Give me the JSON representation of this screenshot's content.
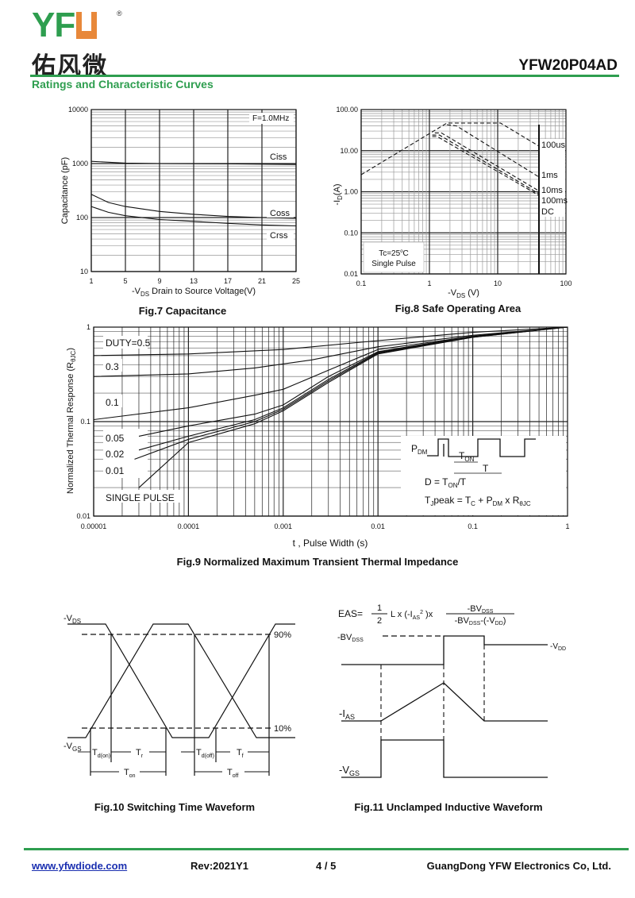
{
  "header": {
    "logo_text": "YFW",
    "logo_cn": "佑风微",
    "registered": "®",
    "part_number": "YFW20P04AD",
    "section_title": "Ratings and Characteristic Curves"
  },
  "footer": {
    "website": "www.yfwdiode.com",
    "revision": "Rev:2021Y1",
    "page": "4 / 5",
    "company": "GuangDong YFW Electronics Co, Ltd."
  },
  "colors": {
    "brand_green": "#2e9e4f",
    "brand_orange": "#e8883a",
    "link": "#1a2fb0"
  },
  "chart_data": [
    {
      "id": "fig7",
      "type": "line",
      "title": "Fig.7 Capacitance",
      "xlabel": {
        "pre": "-V",
        "sub": "DS",
        "post": " Drain to Source Voltage(V)"
      },
      "ylabel": "Capacitance (pF)",
      "xscale": "linear",
      "yscale": "log",
      "xlim": [
        1,
        25
      ],
      "ylim": [
        10,
        10000
      ],
      "xticks": [
        "1",
        "5",
        "9",
        "13",
        "17",
        "21",
        "25"
      ],
      "yticks": [
        "10",
        "100",
        "1000",
        "10000"
      ],
      "annotation": "F=1.0MHz",
      "series": [
        {
          "name": "Ciss",
          "points": [
            [
              1,
              1100
            ],
            [
              5,
              1020
            ],
            [
              9,
              1000
            ],
            [
              17,
              990
            ],
            [
              25,
              960
            ]
          ]
        },
        {
          "name": "Coss",
          "points": [
            [
              1,
              270
            ],
            [
              3,
              190
            ],
            [
              5,
              160
            ],
            [
              9,
              130
            ],
            [
              13,
              115
            ],
            [
              17,
              105
            ],
            [
              21,
              100
            ],
            [
              25,
              97
            ]
          ]
        },
        {
          "name": "Crss",
          "points": [
            [
              1,
              160
            ],
            [
              3,
              125
            ],
            [
              5,
              108
            ],
            [
              9,
              92
            ],
            [
              13,
              85
            ],
            [
              17,
              78
            ],
            [
              21,
              73
            ],
            [
              25,
              70
            ]
          ]
        }
      ]
    },
    {
      "id": "fig8",
      "type": "line",
      "title": "Fig.8 Safe Operating Area",
      "xlabel": {
        "pre": "-V",
        "sub": "DS",
        "post": " (V)"
      },
      "ylabel": {
        "pre": "-I",
        "sub": "D",
        "post": "(A)"
      },
      "xscale": "log",
      "yscale": "log",
      "xlim": [
        0.1,
        100
      ],
      "ylim": [
        0.01,
        100
      ],
      "xticks": [
        "0.1",
        "1",
        "10",
        "100"
      ],
      "yticks": [
        "0.01",
        "0.10",
        "1.00",
        "10.00",
        "100.00"
      ],
      "annotation": {
        "line1_pre": "Tc=25",
        "line1_sup": "o",
        "line1_post": "C",
        "line2": "Single  Pulse"
      },
      "series": [
        {
          "name": "100us",
          "points": [
            [
              0.1,
              2.6
            ],
            [
              1.8,
              47
            ],
            [
              11,
              47
            ],
            [
              40,
              13
            ]
          ]
        },
        {
          "name": "1ms",
          "points": [
            [
              1.8,
              43
            ],
            [
              2.5,
              40
            ],
            [
              40,
              2.3
            ]
          ]
        },
        {
          "name": "10ms",
          "points": [
            [
              1.2,
              27
            ],
            [
              1.5,
              27
            ],
            [
              40,
              1.05
            ]
          ]
        },
        {
          "name": "100ms",
          "points": [
            [
              1.1,
              24
            ],
            [
              1.4,
              24
            ],
            [
              40,
              0.9
            ]
          ]
        },
        {
          "name": "DC",
          "points": [
            [
              1.1,
              22
            ],
            [
              1.3,
              22
            ],
            [
              40,
              0.82
            ]
          ]
        }
      ],
      "limit_line": {
        "x": 40,
        "top": 47
      }
    },
    {
      "id": "fig9",
      "type": "line",
      "title": "Fig.9 Normalized Maximum Transient Thermal Impedance",
      "xlabel": "t , Pulse Width (s)",
      "ylabel": {
        "pre": "Normalized Thermal Response (R",
        "sub": "θJC",
        "post": ")"
      },
      "xscale": "log",
      "yscale": "log",
      "xlim": [
        1e-05,
        1
      ],
      "ylim": [
        0.01,
        1
      ],
      "xticks": [
        "0.00001",
        "0.0001",
        "0.001",
        "0.01",
        "0.1",
        "1"
      ],
      "yticks": [
        "0.01",
        "0.1",
        "1"
      ],
      "series": [
        {
          "name": "DUTY=0.5",
          "points": [
            [
              1e-05,
              0.5
            ],
            [
              0.0001,
              0.52
            ],
            [
              0.001,
              0.58
            ],
            [
              0.01,
              0.72
            ],
            [
              0.1,
              0.88
            ],
            [
              1,
              1
            ]
          ]
        },
        {
          "name": "0.3",
          "points": [
            [
              1e-05,
              0.3
            ],
            [
              0.0001,
              0.32
            ],
            [
              0.0005,
              0.37
            ],
            [
              0.002,
              0.45
            ],
            [
              0.01,
              0.62
            ],
            [
              0.1,
              0.82
            ],
            [
              1,
              1
            ]
          ]
        },
        {
          "name": "0.1",
          "points": [
            [
              1e-05,
              0.105
            ],
            [
              0.0001,
              0.14
            ],
            [
              0.0005,
              0.19
            ],
            [
              0.001,
              0.22
            ],
            [
              0.003,
              0.35
            ],
            [
              0.01,
              0.58
            ],
            [
              0.1,
              0.8
            ],
            [
              1,
              1
            ]
          ]
        },
        {
          "name": "0.05",
          "points": [
            [
              3e-05,
              0.07
            ],
            [
              0.0001,
              0.09
            ],
            [
              0.0005,
              0.12
            ],
            [
              0.001,
              0.15
            ],
            [
              0.003,
              0.3
            ],
            [
              0.01,
              0.55
            ],
            [
              0.1,
              0.8
            ],
            [
              1,
              1
            ]
          ]
        },
        {
          "name": "0.02",
          "points": [
            [
              3e-05,
              0.05
            ],
            [
              0.0001,
              0.07
            ],
            [
              0.0005,
              0.105
            ],
            [
              0.001,
              0.14
            ],
            [
              0.003,
              0.28
            ],
            [
              0.01,
              0.54
            ],
            [
              0.1,
              0.79
            ],
            [
              1,
              1
            ]
          ]
        },
        {
          "name": "0.01",
          "points": [
            [
              2.7e-05,
              0.04
            ],
            [
              0.0001,
              0.065
            ],
            [
              0.0005,
              0.1
            ],
            [
              0.001,
              0.135
            ],
            [
              0.003,
              0.27
            ],
            [
              0.01,
              0.53
            ],
            [
              0.1,
              0.78
            ],
            [
              1,
              1
            ]
          ]
        },
        {
          "name": "SINGLE PULSE",
          "points": [
            [
              3e-05,
              0.02
            ],
            [
              0.0001,
              0.06
            ],
            [
              0.0005,
              0.095
            ],
            [
              0.001,
              0.13
            ],
            [
              0.003,
              0.26
            ],
            [
              0.01,
              0.52
            ],
            [
              0.1,
              0.78
            ],
            [
              1,
              1
            ]
          ]
        }
      ],
      "inset": {
        "pdm": "P",
        "pdm_sub": "DM",
        "ton": "T",
        "ton_sub": "ON",
        "t": "T",
        "duty_pre": "D = T",
        "duty_sub": "ON",
        "duty_post": "/T",
        "tj_pre": "T",
        "tj_sub": "J",
        "tj_mid": "peak = T",
        "tc_sub": "C",
        "tj_plus": " + P",
        "pdm2_sub": "DM",
        "tj_x": " x R",
        "r_sub": "θJC"
      }
    }
  ],
  "fig10": {
    "title": "Fig.10 Switching Time Waveform",
    "vds": "-V",
    "vds_sub": "DS",
    "vgs": "-V",
    "vgs_sub": "GS",
    "p90": "90%",
    "p10": "10%",
    "tdon": "T",
    "tdon_sub": "d(on)",
    "tr": "T",
    "tr_sub": "r",
    "tdoff": "T",
    "tdoff_sub": "d(off)",
    "tf": "T",
    "tf_sub": "f",
    "ton": "T",
    "ton_sub": "on",
    "toff": "T",
    "toff_sub": "off"
  },
  "fig11": {
    "title": "Fig.11 Unclamped Inductive Waveform",
    "eas": "EAS=",
    "one": "1",
    "two": "2",
    "mid": "L x (-I",
    "ias_sub": "AS",
    "sq": "2",
    "close": " )x",
    "num": "-BV",
    "num_sub": "DSS",
    "den": "-BV",
    "den_sub": "DSS",
    "den_post": "-(-V",
    "den_sub2": "DD",
    "den_end": ")",
    "bv": "-BV",
    "bv_sub": "DSS",
    "vdd": "-V",
    "vdd_sub": "DD",
    "ias": "-I",
    "ias_sub2": "AS",
    "vgs": "-V",
    "vgs_sub": "GS"
  }
}
